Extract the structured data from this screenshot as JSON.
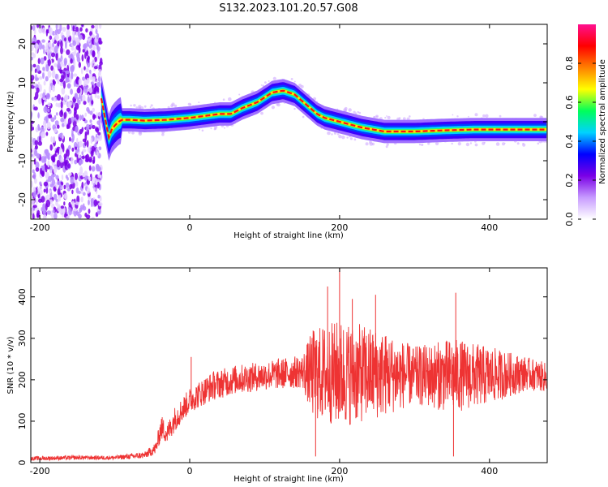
{
  "title": "S132.2023.101.20.57.G08",
  "chart_data": [
    {
      "type": "heatmap",
      "xlabel": "Height of straight line (km)",
      "ylabel": "Frequency (Hz)",
      "xlim": [
        -212,
        477
      ],
      "ylim": [
        -25,
        25
      ],
      "xticks": [
        -200,
        0,
        200,
        400
      ],
      "yticks": [
        -20,
        -10,
        0,
        10,
        20
      ],
      "colorbar": {
        "label": "Normalized spectral amplitude",
        "range": [
          0,
          1
        ],
        "ticks": [
          "0.0",
          "0.2",
          "0.4",
          "0.6",
          "0.8"
        ],
        "tick_values": [
          0,
          0.2,
          0.4,
          0.6,
          0.8
        ],
        "colors": [
          "#ffffff",
          "#c79bff",
          "#7a00e6",
          "#0000ff",
          "#00d2ff",
          "#00ff5a",
          "#ffff00",
          "#ff8000",
          "#ff0000",
          "#ff1090"
        ]
      },
      "noise_region_x": [
        -212,
        -118
      ],
      "ridge": {
        "x": [
          -118,
          -113,
          -108,
          -104,
          -100,
          -95,
          -90,
          -80,
          -60,
          -30,
          0,
          20,
          40,
          55,
          70,
          90,
          110,
          125,
          140,
          155,
          170,
          180,
          200,
          230,
          260,
          300,
          340,
          380,
          420,
          477
        ],
        "y": [
          6,
          1,
          -4,
          -2,
          -1,
          0,
          0.5,
          0.5,
          0.3,
          0.5,
          1,
          1.5,
          2,
          2,
          3.5,
          5,
          7.5,
          8,
          7,
          4.5,
          2,
          1,
          0,
          -1.5,
          -2.5,
          -2.5,
          -2.2,
          -2,
          -2,
          -2
        ]
      }
    },
    {
      "type": "line",
      "xlabel": "Height of straight line (km)",
      "ylabel": "SNR (10 * v/v)",
      "xlim": [
        -212,
        477
      ],
      "ylim": [
        0,
        470
      ],
      "xticks": [
        -200,
        0,
        200,
        400
      ],
      "yticks": [
        0,
        100,
        200,
        300,
        400
      ],
      "color": "#ee3333",
      "envelope": {
        "x": [
          -212,
          -150,
          -100,
          -60,
          -45,
          -38,
          -30,
          -20,
          0,
          30,
          60,
          100,
          150,
          165,
          200,
          250,
          300,
          350,
          400,
          450,
          477
        ],
        "mean": [
          10,
          12,
          12,
          18,
          35,
          85,
          70,
          105,
          150,
          185,
          200,
          210,
          220,
          215,
          215,
          215,
          210,
          210,
          210,
          215,
          205
        ],
        "spread": [
          5,
          5,
          5,
          8,
          15,
          30,
          25,
          30,
          30,
          35,
          35,
          35,
          40,
          110,
          130,
          110,
          70,
          90,
          70,
          40,
          35
        ]
      },
      "spikes": [
        {
          "x": 2,
          "y": 255
        },
        {
          "x": 200,
          "y": 470
        },
        {
          "x": 184,
          "y": 425
        },
        {
          "x": 217,
          "y": 395
        },
        {
          "x": 248,
          "y": 405
        },
        {
          "x": 355,
          "y": 410
        },
        {
          "x": 352,
          "y": 15
        },
        {
          "x": 168,
          "y": 15
        }
      ]
    }
  ]
}
